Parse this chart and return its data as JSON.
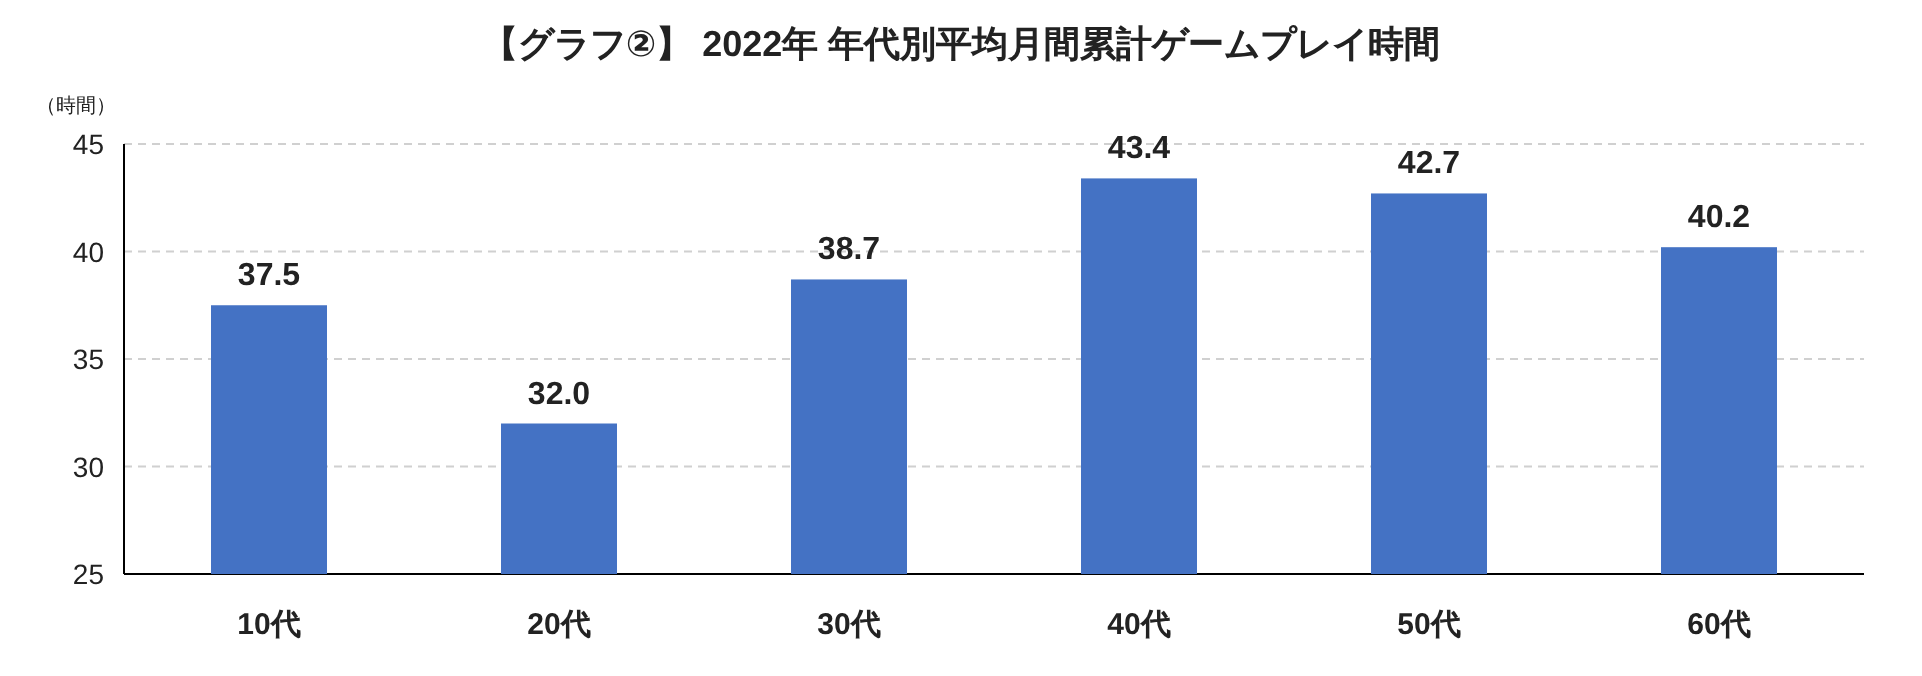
{
  "chart_data": {
    "type": "bar",
    "title": "【グラフ②】 2022年  年代別平均月間累計ゲームプレイ時間",
    "ylabel": "（時間）",
    "categories": [
      "10代",
      "20代",
      "30代",
      "40代",
      "50代",
      "60代"
    ],
    "values": [
      37.5,
      32.0,
      38.7,
      43.4,
      42.7,
      40.2
    ],
    "value_labels": [
      "37.5",
      "32.0",
      "38.7",
      "43.4",
      "42.7",
      "40.2"
    ],
    "color": "#4472c4",
    "ylim": [
      25,
      45
    ],
    "yticks": [
      25,
      30,
      35,
      40,
      45
    ],
    "grid": "y"
  }
}
